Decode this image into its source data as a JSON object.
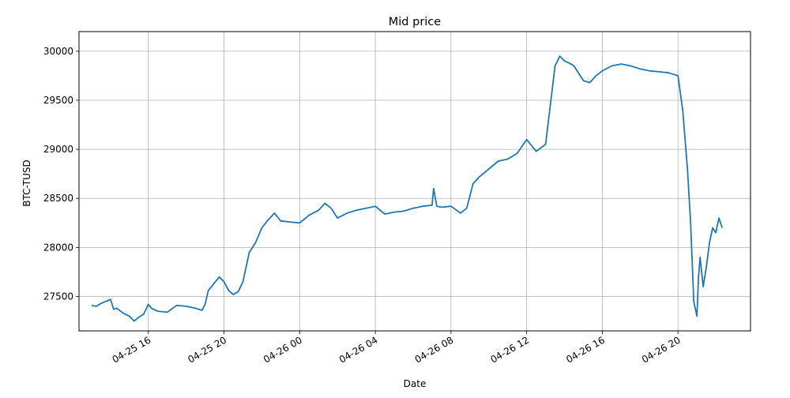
{
  "chart_data": {
    "type": "line",
    "title": "Mid price",
    "xlabel": "Date",
    "ylabel": "BTC-TUSD",
    "grid": true,
    "x_ticks": [
      "04-25 16",
      "04-25 20",
      "04-26 00",
      "04-26 04",
      "04-26 08",
      "04-26 12",
      "04-26 16",
      "04-26 20"
    ],
    "y_ticks": [
      27500,
      28000,
      28500,
      29000,
      29500,
      30000
    ],
    "xlim": [
      "2023-04-25 12:20",
      "2023-04-26 23:50"
    ],
    "ylim": [
      27150,
      30200
    ],
    "series": [
      {
        "color": "#1f77b4",
        "x": [
          "2023-04-25 13:00",
          "2023-04-25 13:15",
          "2023-04-25 13:30",
          "2023-04-25 13:45",
          "2023-04-25 14:00",
          "2023-04-25 14:10",
          "2023-04-25 14:20",
          "2023-04-25 14:40",
          "2023-04-25 15:00",
          "2023-04-25 15:15",
          "2023-04-25 15:30",
          "2023-04-25 15:45",
          "2023-04-25 16:00",
          "2023-04-25 16:10",
          "2023-04-25 16:30",
          "2023-04-25 17:00",
          "2023-04-25 17:30",
          "2023-04-25 18:00",
          "2023-04-25 18:30",
          "2023-04-25 18:50",
          "2023-04-25 19:00",
          "2023-04-25 19:10",
          "2023-04-25 19:30",
          "2023-04-25 19:45",
          "2023-04-25 20:00",
          "2023-04-25 20:15",
          "2023-04-25 20:30",
          "2023-04-25 20:45",
          "2023-04-25 21:00",
          "2023-04-25 21:20",
          "2023-04-25 21:40",
          "2023-04-25 22:00",
          "2023-04-25 22:20",
          "2023-04-25 22:40",
          "2023-04-25 23:00",
          "2023-04-25 23:30",
          "2023-04-26 00:00",
          "2023-04-26 00:30",
          "2023-04-26 01:00",
          "2023-04-26 01:20",
          "2023-04-26 01:40",
          "2023-04-26 02:00",
          "2023-04-26 02:30",
          "2023-04-26 03:00",
          "2023-04-26 03:30",
          "2023-04-26 04:00",
          "2023-04-26 04:30",
          "2023-04-26 05:00",
          "2023-04-26 05:30",
          "2023-04-26 06:00",
          "2023-04-26 06:30",
          "2023-04-26 07:00",
          "2023-04-26 07:05",
          "2023-04-26 07:15",
          "2023-04-26 07:30",
          "2023-04-26 08:00",
          "2023-04-26 08:30",
          "2023-04-26 08:50",
          "2023-04-26 09:10",
          "2023-04-26 09:30",
          "2023-04-26 10:00",
          "2023-04-26 10:30",
          "2023-04-26 11:00",
          "2023-04-26 11:30",
          "2023-04-26 12:00",
          "2023-04-26 12:30",
          "2023-04-26 13:00",
          "2023-04-26 13:15",
          "2023-04-26 13:30",
          "2023-04-26 13:45",
          "2023-04-26 14:00",
          "2023-04-26 14:15",
          "2023-04-26 14:30",
          "2023-04-26 15:00",
          "2023-04-26 15:20",
          "2023-04-26 15:40",
          "2023-04-26 16:00",
          "2023-04-26 16:30",
          "2023-04-26 17:00",
          "2023-04-26 17:30",
          "2023-04-26 18:00",
          "2023-04-26 18:30",
          "2023-04-26 19:00",
          "2023-04-26 19:30",
          "2023-04-26 20:00",
          "2023-04-26 20:15",
          "2023-04-26 20:30",
          "2023-04-26 20:40",
          "2023-04-26 20:50",
          "2023-04-26 21:00",
          "2023-04-26 21:05",
          "2023-04-26 21:10",
          "2023-04-26 21:20",
          "2023-04-26 21:30",
          "2023-04-26 21:40",
          "2023-04-26 21:50",
          "2023-04-26 22:00",
          "2023-04-26 22:10",
          "2023-04-26 22:20"
        ],
        "values": [
          27410,
          27400,
          27430,
          27450,
          27470,
          27370,
          27380,
          27330,
          27300,
          27250,
          27290,
          27320,
          27420,
          27380,
          27350,
          27340,
          27410,
          27400,
          27380,
          27360,
          27420,
          27560,
          27640,
          27700,
          27650,
          27560,
          27520,
          27550,
          27650,
          27950,
          28050,
          28200,
          28280,
          28350,
          28270,
          28260,
          28250,
          28330,
          28380,
          28450,
          28400,
          28300,
          28350,
          28380,
          28400,
          28420,
          28340,
          28360,
          28370,
          28400,
          28420,
          28430,
          28600,
          28420,
          28410,
          28420,
          28350,
          28400,
          28650,
          28720,
          28800,
          28880,
          28900,
          28960,
          29100,
          28980,
          29050,
          29450,
          29850,
          29950,
          29900,
          29880,
          29850,
          29700,
          29680,
          29750,
          29800,
          29850,
          29870,
          29850,
          29820,
          29800,
          29790,
          29780,
          29750,
          29400,
          28800,
          28250,
          27450,
          27300,
          27700,
          27900,
          27600,
          27800,
          28050,
          28200,
          28150,
          28300,
          28200
        ]
      }
    ]
  }
}
